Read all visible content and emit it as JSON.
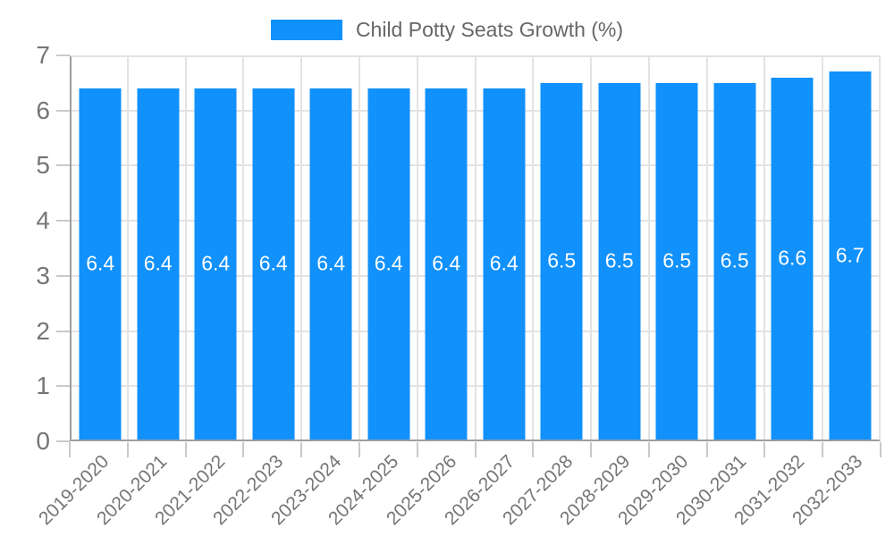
{
  "legend": {
    "label": "Child Potty Seats Growth (%)"
  },
  "chart_data": {
    "type": "bar",
    "title": "Child Potty Seats Growth (%)",
    "series": [
      {
        "name": "Child Potty Seats Growth (%)",
        "values": [
          6.4,
          6.4,
          6.4,
          6.4,
          6.4,
          6.4,
          6.4,
          6.4,
          6.5,
          6.5,
          6.5,
          6.5,
          6.6,
          6.7
        ]
      }
    ],
    "categories": [
      "2019-2020",
      "2020-2021",
      "2021-2022",
      "2022-2023",
      "2023-2024",
      "2024-2025",
      "2025-2026",
      "2026-2027",
      "2027-2028",
      "2028-2029",
      "2029-2030",
      "2030-2031",
      "2031-2032",
      "2032-2033"
    ],
    "value_labels": [
      "6.4",
      "6.4",
      "6.4",
      "6.4",
      "6.4",
      "6.4",
      "6.4",
      "6.4",
      "6.5",
      "6.5",
      "6.5",
      "6.5",
      "6.6",
      "6.7"
    ],
    "xlabel": "",
    "ylabel": "",
    "ylim": [
      0,
      7
    ],
    "yticks": [
      "0",
      "1",
      "2",
      "3",
      "4",
      "5",
      "6",
      "7"
    ],
    "grid": true,
    "legend_position": "top-center",
    "bar_label_position": "inside-center",
    "x_tick_rotation_deg": 45,
    "colors": {
      "bar": "#1191fb",
      "axis_line": "#9e9e9e",
      "gridline": "#e3e3e3",
      "tick_mark": "#c9c9c9",
      "axis_text": "#757575",
      "legend_text": "#666666",
      "bar_label_text": "#ffffff"
    }
  }
}
